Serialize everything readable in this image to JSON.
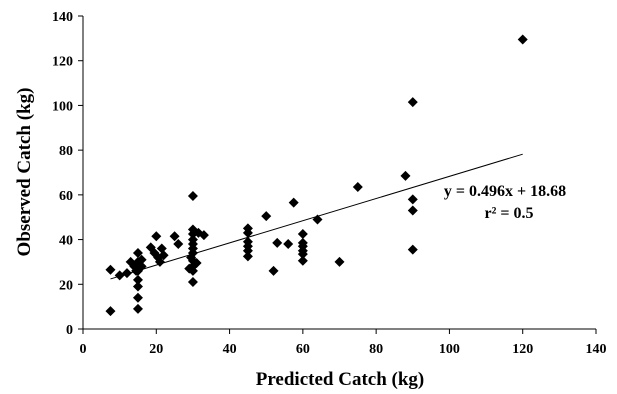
{
  "chart_data": {
    "type": "scatter",
    "title": "",
    "xlabel": "Predicted Catch (kg)",
    "ylabel": "Observed Catch (kg)",
    "xlim": [
      0,
      140
    ],
    "ylim": [
      0,
      140
    ],
    "xticks": [
      0,
      20,
      40,
      60,
      80,
      100,
      120,
      140
    ],
    "yticks": [
      0,
      20,
      40,
      60,
      80,
      100,
      120,
      140
    ],
    "grid": false,
    "marker": "diamond",
    "marker_color": "#000000",
    "points": [
      {
        "x": 7.5,
        "y": 8
      },
      {
        "x": 7.5,
        "y": 26.5
      },
      {
        "x": 10,
        "y": 24
      },
      {
        "x": 12,
        "y": 25
      },
      {
        "x": 13,
        "y": 30
      },
      {
        "x": 14,
        "y": 28
      },
      {
        "x": 14.5,
        "y": 26
      },
      {
        "x": 15,
        "y": 34
      },
      {
        "x": 15,
        "y": 30
      },
      {
        "x": 15,
        "y": 26
      },
      {
        "x": 15,
        "y": 22
      },
      {
        "x": 15,
        "y": 19
      },
      {
        "x": 15,
        "y": 14
      },
      {
        "x": 15,
        "y": 9
      },
      {
        "x": 16,
        "y": 31
      },
      {
        "x": 16,
        "y": 28
      },
      {
        "x": 18.5,
        "y": 36.5
      },
      {
        "x": 19.5,
        "y": 34
      },
      {
        "x": 20,
        "y": 41.5
      },
      {
        "x": 20.5,
        "y": 32
      },
      {
        "x": 21,
        "y": 30
      },
      {
        "x": 21.5,
        "y": 36
      },
      {
        "x": 22,
        "y": 33
      },
      {
        "x": 25,
        "y": 41.5
      },
      {
        "x": 26,
        "y": 38
      },
      {
        "x": 29,
        "y": 27
      },
      {
        "x": 29.5,
        "y": 32
      },
      {
        "x": 30,
        "y": 59.5
      },
      {
        "x": 30,
        "y": 44.5
      },
      {
        "x": 30,
        "y": 42.5
      },
      {
        "x": 30,
        "y": 40
      },
      {
        "x": 30,
        "y": 38
      },
      {
        "x": 30,
        "y": 36
      },
      {
        "x": 30,
        "y": 34
      },
      {
        "x": 30,
        "y": 30.5
      },
      {
        "x": 30,
        "y": 28
      },
      {
        "x": 30,
        "y": 26
      },
      {
        "x": 30,
        "y": 21
      },
      {
        "x": 31,
        "y": 29.5
      },
      {
        "x": 31.5,
        "y": 43
      },
      {
        "x": 33,
        "y": 42
      },
      {
        "x": 45,
        "y": 45
      },
      {
        "x": 45,
        "y": 43
      },
      {
        "x": 45,
        "y": 39
      },
      {
        "x": 45,
        "y": 37
      },
      {
        "x": 45,
        "y": 35
      },
      {
        "x": 45,
        "y": 32.5
      },
      {
        "x": 50,
        "y": 50.5
      },
      {
        "x": 52,
        "y": 26
      },
      {
        "x": 53,
        "y": 38.5
      },
      {
        "x": 56,
        "y": 38
      },
      {
        "x": 57.5,
        "y": 56.5
      },
      {
        "x": 60,
        "y": 42.5
      },
      {
        "x": 60,
        "y": 38.5
      },
      {
        "x": 60,
        "y": 37
      },
      {
        "x": 60,
        "y": 35
      },
      {
        "x": 60,
        "y": 33.5
      },
      {
        "x": 60,
        "y": 30.5
      },
      {
        "x": 64,
        "y": 49
      },
      {
        "x": 70,
        "y": 30
      },
      {
        "x": 75,
        "y": 63.5
      },
      {
        "x": 88,
        "y": 68.5
      },
      {
        "x": 90,
        "y": 101.5
      },
      {
        "x": 90,
        "y": 58
      },
      {
        "x": 90,
        "y": 53
      },
      {
        "x": 90,
        "y": 35.5
      },
      {
        "x": 120,
        "y": 129.5
      }
    ],
    "trendline": {
      "x_start": 7.5,
      "x_end": 120,
      "slope": 0.496,
      "intercept": 18.68
    },
    "annotations": [
      "y = 0.496x + 18.68",
      "r² = 0.5"
    ]
  }
}
